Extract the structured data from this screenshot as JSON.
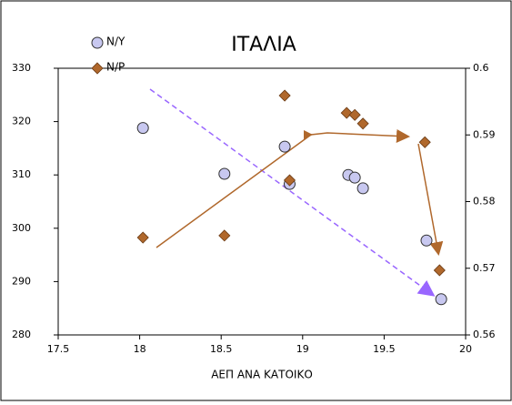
{
  "chart_data": {
    "type": "scatter",
    "title": "ΙΤΑΛΙΑ",
    "x_label": "ΑΕΠ ΑΝΑ ΚΑΤΟΙΚΟ",
    "xlim": [
      17.5,
      20
    ],
    "xticks": [
      17.5,
      18,
      18.5,
      19,
      19.5,
      20
    ],
    "ylim": [
      280,
      330
    ],
    "yticks": [
      280,
      290,
      300,
      310,
      320,
      330
    ],
    "y2lim": [
      0.56,
      0.6
    ],
    "y2ticks": [
      0.56,
      0.57,
      0.58,
      0.59,
      0.6
    ],
    "legend": "top-left",
    "series": [
      {
        "name": "N/Y",
        "color": "#c8c8f0",
        "marker": "circle",
        "x": [
          18.02,
          18.52,
          18.89,
          18.92,
          19.28,
          19.32,
          19.37,
          19.76,
          19.85
        ],
        "values": [
          318.8,
          310.2,
          315.3,
          308.3,
          310.0,
          309.5,
          307.5,
          297.7,
          286.7
        ]
      },
      {
        "name": "N/P",
        "color": "#b0682c",
        "marker": "diamond",
        "axis": "y2",
        "x": [
          18.02,
          18.52,
          18.89,
          18.92,
          19.27,
          19.32,
          19.37,
          19.75,
          19.84
        ],
        "values": [
          0.5746,
          0.5749,
          0.5959,
          0.5832,
          0.5933,
          0.593,
          0.5917,
          0.5889,
          0.5697
        ]
      }
    ]
  }
}
